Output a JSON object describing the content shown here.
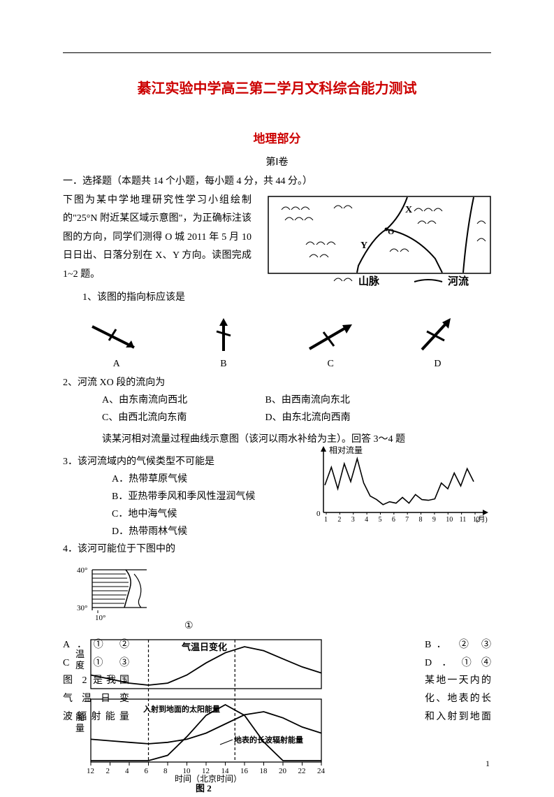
{
  "title_main": "綦江实验中学高三第二学月文科综合能力测试",
  "title_section": "地理部分",
  "title_sub": "第Ⅰ卷",
  "mcq_header": "一．选择题（本题共 14 个小题，每小题 4 分，共 44 分。）",
  "intro_text": "下图为某中学地理研究性学习小组绘制的\"25°N 附近某区域示意图\"，为正确标注该图的方向，同学们测得 O 城 2011 年 5 月 10 日日出、日落分别在 X、Y 方向。读图完成 1~2 题。",
  "map": {
    "label_mountain": "山脉",
    "label_river": "河流",
    "label_X": "X",
    "label_O": "O",
    "label_Y": "Y",
    "border_color": "#000000",
    "bg_color": "#ffffff"
  },
  "q1": "1、该图的指向标应该是",
  "arrows": {
    "labels": [
      "A",
      "B",
      "C",
      "D"
    ],
    "stroke": "#000000",
    "stroke_width": 3
  },
  "q2": "2、河流 XO 段的流向为",
  "q2_opts_row1": {
    "A": "A、由东南流向西北",
    "B": "B、由西南流向东北"
  },
  "q2_opts_row2": {
    "C": "C、由西北流向东南",
    "D": "D、由东北流向西南"
  },
  "q3_intro": "读某河相对流量过程曲线示意图（该河以雨水补给为主）。回答 3～4 题",
  "q3": "3．该河流域内的气候类型不可能是",
  "q3_opts": {
    "A": "A．热带草原气候",
    "B": "B．亚热带季风和季风性湿润气候",
    "C": "C．地中海气候",
    "D": "D．热带雨林气候"
  },
  "flow_chart": {
    "type": "line",
    "ylabel": "相对流量",
    "xaxis_ticks": [
      "1",
      "2",
      "3",
      "4",
      "5",
      "6",
      "7",
      "8",
      "9",
      "10",
      "11",
      "12"
    ],
    "xaxis_unit": "(月)",
    "zero_label": "0",
    "line_color": "#000000",
    "axis_color": "#000000",
    "bg_color": "#ffffff",
    "values": [
      35,
      60,
      30,
      65,
      40,
      72,
      38,
      20,
      15,
      8,
      12,
      10,
      18,
      10,
      22,
      15,
      14,
      16,
      38,
      30,
      52,
      34,
      58,
      40
    ]
  },
  "q4": "4．该河可能位于下图中的",
  "mini_map": {
    "lat_top": "40°",
    "lat_bot": "30°",
    "lon": "10°",
    "circled_label": "①",
    "stroke": "#000000",
    "hatch_color": "#000000"
  },
  "q4_opts": {
    "A": "A．① ②",
    "B": "B． ② ③",
    "C": "C．① ③",
    "D": "D．①④"
  },
  "q5_intro_left": [
    "图 2 是我国",
    "气 温 日 变",
    "波辐射能量"
  ],
  "q5_intro_right": [
    "某地一天内的",
    "化、地表的长",
    "和入射到地面"
  ],
  "fig2": {
    "title_top": "气温日变化",
    "label_solar": "入射到地面的太阳能量",
    "label_longwave": "地表的长波辐射能量",
    "y_top": "温度",
    "y_bot": "能量",
    "x_ticks": [
      "12",
      "2",
      "4",
      "6",
      "8",
      "10",
      "12",
      "14",
      "16",
      "18",
      "20",
      "22",
      "24"
    ],
    "x_label": "时间（北京时间）",
    "caption": "图 2",
    "line_color": "#000000",
    "grid_color": "#000000",
    "bg_color": "#ffffff",
    "temp_curve": [
      16,
      14,
      12,
      11,
      12,
      16,
      22,
      27,
      30,
      28,
      24,
      20,
      17
    ],
    "solar_curve": [
      0,
      0,
      0,
      0,
      4,
      18,
      34,
      42,
      34,
      14,
      0,
      0,
      0
    ],
    "longwave_curve": [
      14,
      13,
      12,
      11,
      12,
      14,
      18,
      24,
      30,
      32,
      28,
      22,
      18
    ],
    "vline1_x": 6,
    "vline2_x": 15
  },
  "page_number": "1"
}
